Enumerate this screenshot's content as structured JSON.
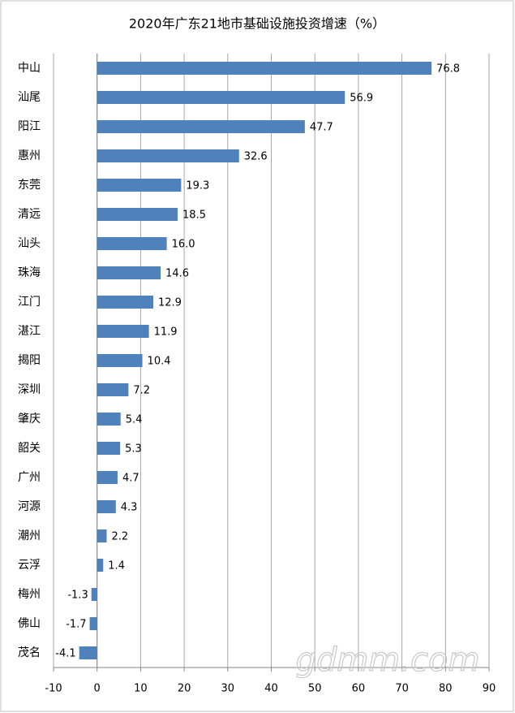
{
  "chart_data": {
    "type": "bar",
    "orientation": "horizontal",
    "title": "2020年广东21地市基础设施投资增速（%）",
    "categories": [
      "中山",
      "汕尾",
      "阳江",
      "惠州",
      "东莞",
      "清远",
      "汕头",
      "珠海",
      "江门",
      "湛江",
      "揭阳",
      "深圳",
      "肇庆",
      "韶关",
      "广州",
      "河源",
      "潮州",
      "云浮",
      "梅州",
      "佛山",
      "茂名"
    ],
    "values": [
      76.8,
      56.9,
      47.7,
      32.6,
      19.3,
      18.5,
      16.0,
      14.6,
      12.9,
      11.9,
      10.4,
      7.2,
      5.4,
      5.3,
      4.7,
      4.3,
      2.2,
      1.4,
      -1.3,
      -1.7,
      -4.1
    ],
    "value_labels": [
      "76.8",
      "56.9",
      "47.7",
      "32.6",
      "19.3",
      "18.5",
      "16.0",
      "14.6",
      "12.9",
      "11.9",
      "10.4",
      "7.2",
      "5.4",
      "5.3",
      "4.7",
      "4.3",
      "2.2",
      "1.4",
      "-1.3",
      "-1.7",
      "-4.1"
    ],
    "color": "#4f81bd",
    "xlim": [
      -10,
      90
    ],
    "xticks": [
      -10,
      0,
      10,
      20,
      30,
      40,
      50,
      60,
      70,
      80,
      90
    ],
    "grid": true,
    "watermark": "gdmm.com"
  }
}
